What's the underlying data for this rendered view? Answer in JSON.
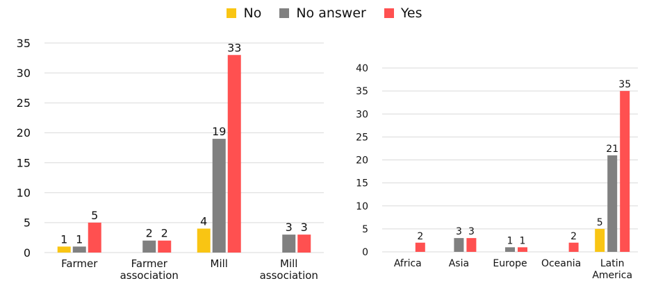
{
  "legend": {
    "items": [
      {
        "label": "No",
        "color": "#f9c513"
      },
      {
        "label": "No answer",
        "color": "#808080"
      },
      {
        "label": "Yes",
        "color": "#ff5050"
      }
    ]
  },
  "chart_data": [
    {
      "type": "bar",
      "title": "",
      "xlabel": "",
      "ylabel": "",
      "categories": [
        "Farmer",
        "Farmer association",
        "Mill",
        "Mill association"
      ],
      "series": [
        {
          "name": "No",
          "values": [
            1,
            null,
            4,
            null
          ]
        },
        {
          "name": "No answer",
          "values": [
            1,
            2,
            19,
            3
          ]
        },
        {
          "name": "Yes",
          "values": [
            5,
            2,
            33,
            3
          ]
        }
      ],
      "ylim": [
        0,
        35
      ],
      "yticks": [
        0,
        5,
        10,
        15,
        20,
        25,
        30,
        35
      ],
      "grid": true,
      "data_labels": true
    },
    {
      "type": "bar",
      "title": "",
      "xlabel": "",
      "ylabel": "",
      "categories": [
        "Africa",
        "Asia",
        "Europe",
        "Oceania",
        "Latin America"
      ],
      "series": [
        {
          "name": "No",
          "values": [
            null,
            null,
            null,
            null,
            5
          ]
        },
        {
          "name": "No answer",
          "values": [
            null,
            3,
            1,
            null,
            21
          ]
        },
        {
          "name": "Yes",
          "values": [
            2,
            3,
            1,
            2,
            35
          ]
        }
      ],
      "ylim": [
        0,
        40
      ],
      "yticks": [
        0,
        5,
        10,
        15,
        20,
        25,
        30,
        35,
        40
      ],
      "grid": true,
      "data_labels": true
    }
  ]
}
